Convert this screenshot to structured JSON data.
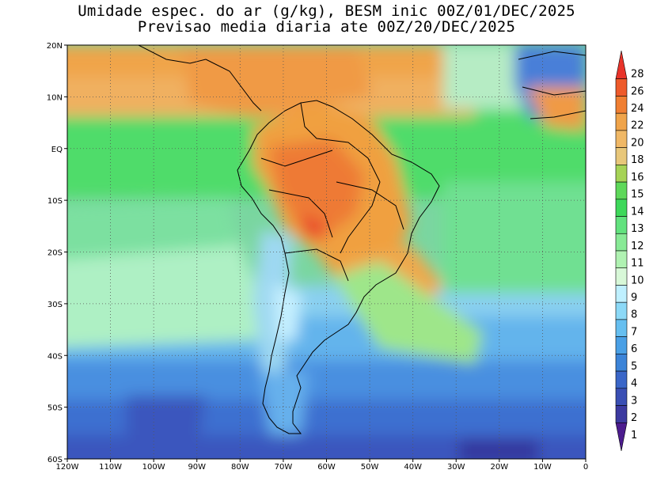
{
  "title": {
    "line1": "Umidade espec. do ar (g/kg), BESM inic 00Z/01/DEC/2025",
    "line2": "Previsao media diaria ate 00Z/20/DEC/2025"
  },
  "map": {
    "lon_ticks": [
      "120W",
      "110W",
      "100W",
      "90W",
      "80W",
      "70W",
      "60W",
      "50W",
      "40W",
      "30W",
      "20W",
      "10W",
      "0"
    ],
    "lat_ticks": [
      "20N",
      "10N",
      "EQ",
      "10S",
      "20S",
      "30S",
      "40S",
      "50S",
      "60S"
    ],
    "lon_range": [
      -120,
      0
    ],
    "lat_range": [
      -60,
      20
    ],
    "gridlines": "dotted",
    "field": "specific humidity (g/kg)"
  },
  "colorbar": {
    "levels": [
      "28",
      "26",
      "24",
      "22",
      "20",
      "18",
      "16",
      "15",
      "14",
      "13",
      "12",
      "11",
      "10",
      "9",
      "8",
      "7",
      "6",
      "5",
      "4",
      "3",
      "2",
      "1"
    ],
    "colors": [
      "#e8332a",
      "#ee5a2a",
      "#f07f32",
      "#f0a44a",
      "#f0b866",
      "#e8c77a",
      "#a6d356",
      "#5ed85a",
      "#3ed85a",
      "#62e27e",
      "#88ea96",
      "#b0f2b2",
      "#d8f8d8",
      "#bff0ff",
      "#8cd9f7",
      "#66bff0",
      "#4aa0e6",
      "#3c84d8",
      "#3a66c8",
      "#3a4fb4",
      "#3c3aa0",
      "#4c1c8e"
    ],
    "arrows": true
  }
}
